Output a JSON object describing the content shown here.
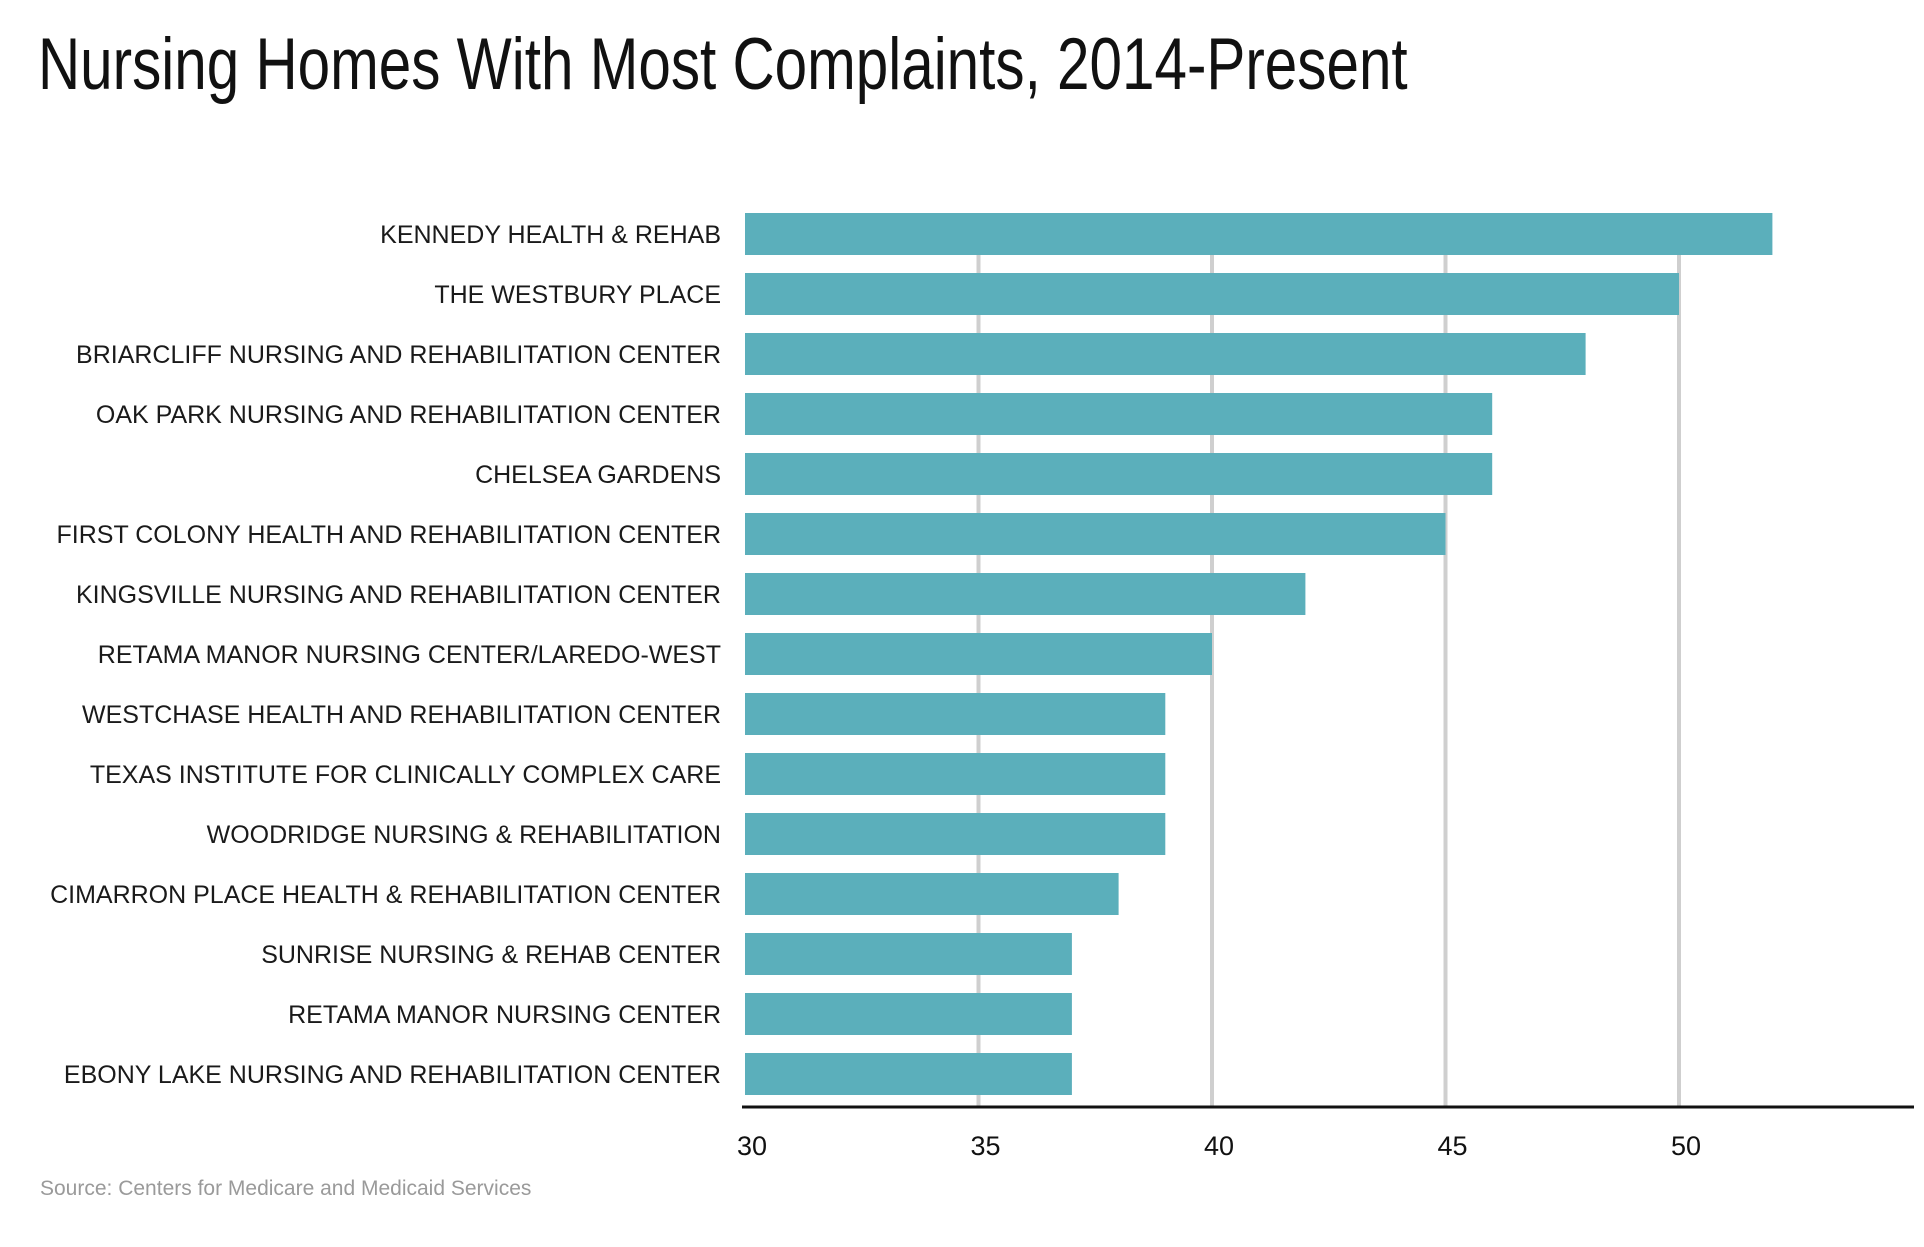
{
  "title": "Nursing Homes With Most Complaints, 2014-Present",
  "source": "Source: Centers for Medicare and Medicaid Services",
  "colors": {
    "bar": "#5BAFBB",
    "grid": "#cfcfcf",
    "axis": "#111111"
  },
  "chart_data": {
    "type": "bar",
    "orientation": "horizontal",
    "title": "Nursing Homes With Most Complaints, 2014-Present",
    "xlabel": "",
    "ylabel": "",
    "xlim": [
      30,
      55
    ],
    "xticks": [
      30,
      35,
      40,
      45,
      50
    ],
    "grid": true,
    "categories": [
      "KENNEDY HEALTH & REHAB",
      "THE WESTBURY PLACE",
      "BRIARCLIFF NURSING AND REHABILITATION CENTER",
      "OAK PARK NURSING AND REHABILITATION CENTER",
      "CHELSEA GARDENS",
      "FIRST COLONY HEALTH AND REHABILITATION CENTER",
      "KINGSVILLE NURSING AND REHABILITATION CENTER",
      "RETAMA MANOR NURSING CENTER/LAREDO-WEST",
      "WESTCHASE HEALTH AND REHABILITATION CENTER",
      "TEXAS INSTITUTE FOR CLINICALLY COMPLEX CARE",
      "WOODRIDGE NURSING & REHABILITATION",
      "CIMARRON PLACE HEALTH & REHABILITATION CENTER",
      "SUNRISE NURSING & REHAB CENTER",
      "RETAMA MANOR NURSING CENTER",
      "EBONY LAKE NURSING AND REHABILITATION CENTER"
    ],
    "values": [
      52,
      50,
      48,
      46,
      46,
      45,
      42,
      40,
      39,
      39,
      39,
      38,
      37,
      37,
      37
    ]
  }
}
